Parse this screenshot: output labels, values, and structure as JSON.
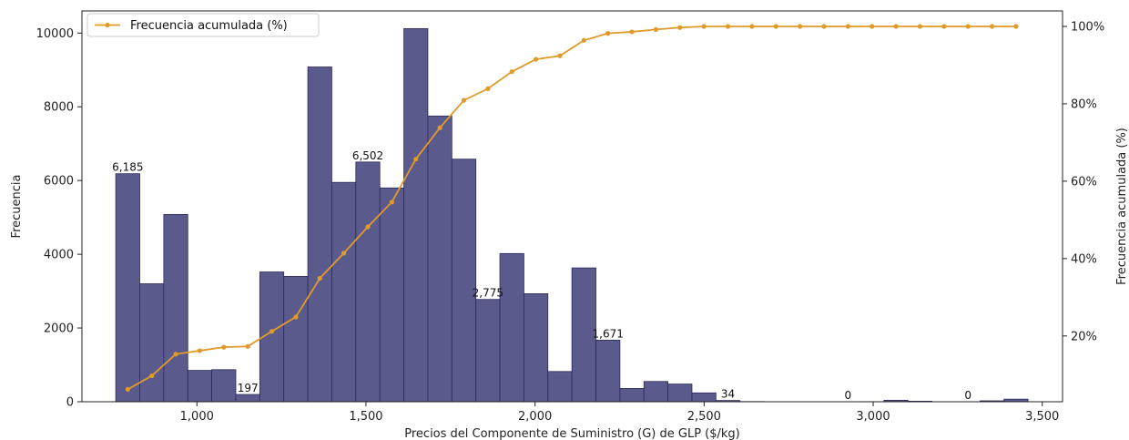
{
  "chart_data": {
    "type": "bar",
    "xlabel": "Precios del Componente de  Suministro (G) de GLP ($/kg)",
    "ylabel": "Frecuencia",
    "y2label": "Frecuencia acumulada (%)",
    "xlim": [
      660,
      3560
    ],
    "ylim": [
      0,
      10600
    ],
    "y2lim": [
      3,
      104
    ],
    "xticks": [
      1000,
      1500,
      2000,
      2500,
      3000,
      3500
    ],
    "xtick_labels": [
      "1,000",
      "1,500",
      "2,000",
      "2,500",
      "3,000",
      "3,500"
    ],
    "yticks": [
      0,
      2000,
      4000,
      6000,
      8000,
      10000
    ],
    "ytick_labels": [
      "0",
      "2000",
      "4000",
      "6000",
      "8000",
      "10000"
    ],
    "y2ticks": [
      20,
      40,
      60,
      80,
      100
    ],
    "y2tick_labels": [
      "20%",
      "40%",
      "60%",
      "80%",
      "100%"
    ],
    "bar_color": "#5a5a8c",
    "bar_edge_color": "#2a2a5a",
    "line_color": "#e09a2a",
    "legend": {
      "position": "top-left",
      "label": "Frecuencia acumulada (%)"
    },
    "bins": [
      {
        "x0": 760,
        "x1": 831,
        "count": 6185
      },
      {
        "x0": 831,
        "x1": 902,
        "count": 3200
      },
      {
        "x0": 902,
        "x1": 973,
        "count": 5080
      },
      {
        "x0": 973,
        "x1": 1044,
        "count": 850
      },
      {
        "x0": 1044,
        "x1": 1115,
        "count": 870
      },
      {
        "x0": 1115,
        "x1": 1186,
        "count": 197
      },
      {
        "x0": 1186,
        "x1": 1257,
        "count": 3520
      },
      {
        "x0": 1257,
        "x1": 1328,
        "count": 3400
      },
      {
        "x0": 1328,
        "x1": 1399,
        "count": 9080
      },
      {
        "x0": 1399,
        "x1": 1470,
        "count": 5950
      },
      {
        "x0": 1470,
        "x1": 1541,
        "count": 6502
      },
      {
        "x0": 1541,
        "x1": 1612,
        "count": 5800
      },
      {
        "x0": 1612,
        "x1": 1683,
        "count": 10120
      },
      {
        "x0": 1683,
        "x1": 1754,
        "count": 7750
      },
      {
        "x0": 1754,
        "x1": 1825,
        "count": 6580
      },
      {
        "x0": 1825,
        "x1": 1896,
        "count": 2775
      },
      {
        "x0": 1896,
        "x1": 1967,
        "count": 4020
      },
      {
        "x0": 1967,
        "x1": 2038,
        "count": 2930
      },
      {
        "x0": 2038,
        "x1": 2109,
        "count": 820
      },
      {
        "x0": 2109,
        "x1": 2180,
        "count": 3630
      },
      {
        "x0": 2180,
        "x1": 2251,
        "count": 1671
      },
      {
        "x0": 2251,
        "x1": 2322,
        "count": 360
      },
      {
        "x0": 2322,
        "x1": 2393,
        "count": 550
      },
      {
        "x0": 2393,
        "x1": 2464,
        "count": 480
      },
      {
        "x0": 2464,
        "x1": 2535,
        "count": 240
      },
      {
        "x0": 2535,
        "x1": 2606,
        "count": 34
      },
      {
        "x0": 2606,
        "x1": 2677,
        "count": 5
      },
      {
        "x0": 2677,
        "x1": 2748,
        "count": 2
      },
      {
        "x0": 2748,
        "x1": 2819,
        "count": 1
      },
      {
        "x0": 2819,
        "x1": 2890,
        "count": 1
      },
      {
        "x0": 2890,
        "x1": 2961,
        "count": 0
      },
      {
        "x0": 2961,
        "x1": 3032,
        "count": 3
      },
      {
        "x0": 3032,
        "x1": 3103,
        "count": 40
      },
      {
        "x0": 3103,
        "x1": 3174,
        "count": 15
      },
      {
        "x0": 3174,
        "x1": 3245,
        "count": 2
      },
      {
        "x0": 3245,
        "x1": 3316,
        "count": 0
      },
      {
        "x0": 3316,
        "x1": 3387,
        "count": 25
      },
      {
        "x0": 3387,
        "x1": 3458,
        "count": 70
      }
    ],
    "bar_labels": [
      {
        "bin": 0,
        "text": "6,185"
      },
      {
        "bin": 5,
        "text": "197"
      },
      {
        "bin": 10,
        "text": "6,502"
      },
      {
        "bin": 15,
        "text": "2,775"
      },
      {
        "bin": 20,
        "text": "1,671"
      },
      {
        "bin": 25,
        "text": "34"
      },
      {
        "bin": 30,
        "text": "0"
      },
      {
        "bin": 35,
        "text": "0"
      }
    ],
    "cumulative_pct": [
      6.2,
      9.7,
      15.3,
      16.2,
      17.1,
      17.3,
      21.2,
      24.9,
      34.9,
      41.4,
      48.2,
      54.6,
      65.7,
      73.8,
      80.9,
      83.9,
      88.3,
      91.5,
      92.4,
      96.4,
      98.2,
      98.6,
      99.2,
      99.7,
      100.0,
      100.0,
      100.0,
      100.0,
      100.0,
      100.0,
      100.0,
      100.0,
      100.0,
      100.0,
      100.0,
      100.0,
      100.0,
      100.0
    ]
  }
}
